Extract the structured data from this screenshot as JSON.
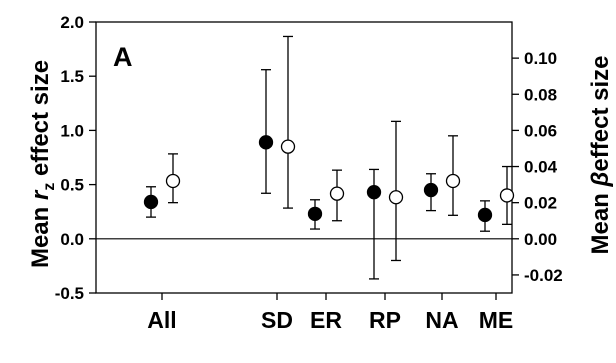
{
  "chart_data": {
    "type": "scatter",
    "subtype": "dot-and-whisker, dual y-axis",
    "panel_label": "A",
    "categories": [
      "All",
      "SD",
      "ER",
      "RP",
      "NA",
      "ME"
    ],
    "left_axis": {
      "label_prefix": "Mean ",
      "label_var": "r",
      "label_sub": "z",
      "label_suffix": " effect size",
      "ylim": [
        -0.5,
        2.0
      ],
      "ticks": [
        "2.0",
        "1.5",
        "1.0",
        "0.5",
        "0.0",
        "-0.5"
      ]
    },
    "right_axis": {
      "label_prefix": "Mean ",
      "label_var": "β",
      "label_suffix": "effect size",
      "ylim": [
        -0.03,
        0.12
      ],
      "ticks": [
        "0.10",
        "0.08",
        "0.06",
        "0.04",
        "0.02",
        "0.00",
        "-0.02"
      ]
    },
    "reference_line": 0.0,
    "series": [
      {
        "axis": "left",
        "marker": "filled",
        "color": "#000000",
        "points": [
          {
            "category": "All",
            "y": 0.34,
            "lo": 0.2,
            "hi": 0.48
          },
          {
            "category": "SD",
            "y": 0.89,
            "lo": 0.42,
            "hi": 1.56
          },
          {
            "category": "ER",
            "y": 0.23,
            "lo": 0.09,
            "hi": 0.36
          },
          {
            "category": "RP",
            "y": 0.43,
            "lo": -0.37,
            "hi": 0.64
          },
          {
            "category": "NA",
            "y": 0.45,
            "lo": 0.26,
            "hi": 0.6
          },
          {
            "category": "ME",
            "y": 0.22,
            "lo": 0.07,
            "hi": 0.35
          }
        ]
      },
      {
        "axis": "right",
        "marker": "open",
        "color": "#000000",
        "points": [
          {
            "category": "All",
            "y": 0.032,
            "lo": 0.02,
            "hi": 0.047
          },
          {
            "category": "SD",
            "y": 0.051,
            "lo": 0.017,
            "hi": 0.112
          },
          {
            "category": "ER",
            "y": 0.025,
            "lo": 0.01,
            "hi": 0.038
          },
          {
            "category": "RP",
            "y": 0.023,
            "lo": -0.012,
            "hi": 0.065
          },
          {
            "category": "NA",
            "y": 0.032,
            "lo": 0.013,
            "hi": 0.057
          },
          {
            "category": "ME",
            "y": 0.024,
            "lo": 0.008,
            "hi": 0.04
          }
        ]
      }
    ],
    "legend": "none",
    "grid": false
  }
}
